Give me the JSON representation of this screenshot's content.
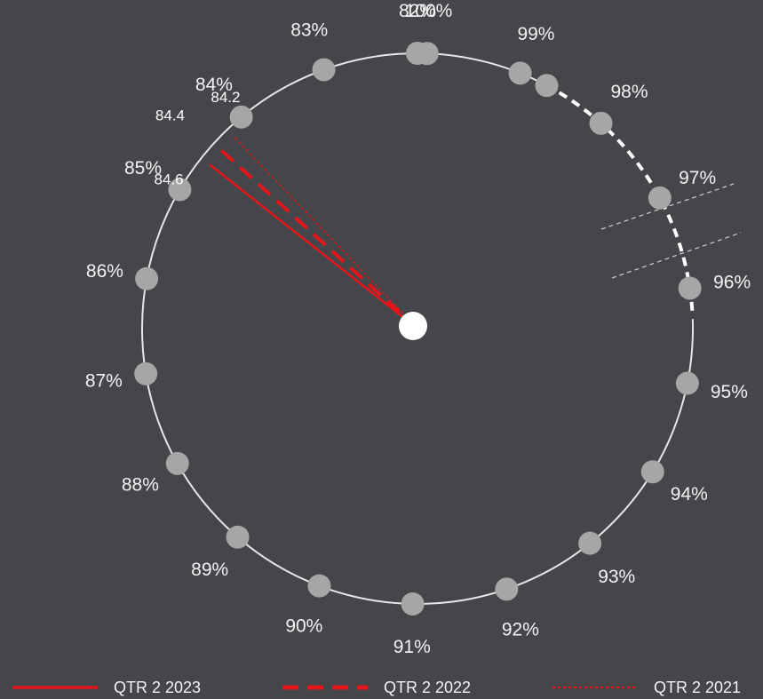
{
  "chart_data": {
    "type": "radial-gauge",
    "title": "",
    "scale": {
      "min": 82,
      "max": 100,
      "unit": "%",
      "axis_break": "between 100% and 82%",
      "tick_values": [
        82,
        83,
        84,
        85,
        86,
        87,
        88,
        89,
        90,
        91,
        92,
        93,
        94,
        95,
        96,
        97,
        98,
        99,
        100
      ],
      "tick_labels": [
        "82%",
        "83%",
        "84%",
        "85%",
        "86%",
        "87%",
        "88%",
        "89%",
        "90%",
        "91%",
        "92%",
        "93%",
        "94%",
        "95%",
        "96%",
        "97%",
        "98%",
        "99%",
        "100%"
      ]
    },
    "series": [
      {
        "name": "QTR 2 2023",
        "value": 84.6,
        "value_label": "84.6",
        "style": "solid",
        "color": "#e2161b"
      },
      {
        "name": "QTR 2 2022",
        "value": 84.4,
        "value_label": "84.4",
        "style": "dashed",
        "color": "#e2161b"
      },
      {
        "name": "QTR 2 2021",
        "value": 84.2,
        "value_label": "84.2",
        "style": "dotted",
        "color": "#e2161b"
      }
    ],
    "legend": {
      "position": "bottom"
    },
    "colors": {
      "background": "#44464a",
      "ring": "#e6e6e6",
      "marker": "#a6a6a6",
      "hub": "#ffffff"
    }
  }
}
